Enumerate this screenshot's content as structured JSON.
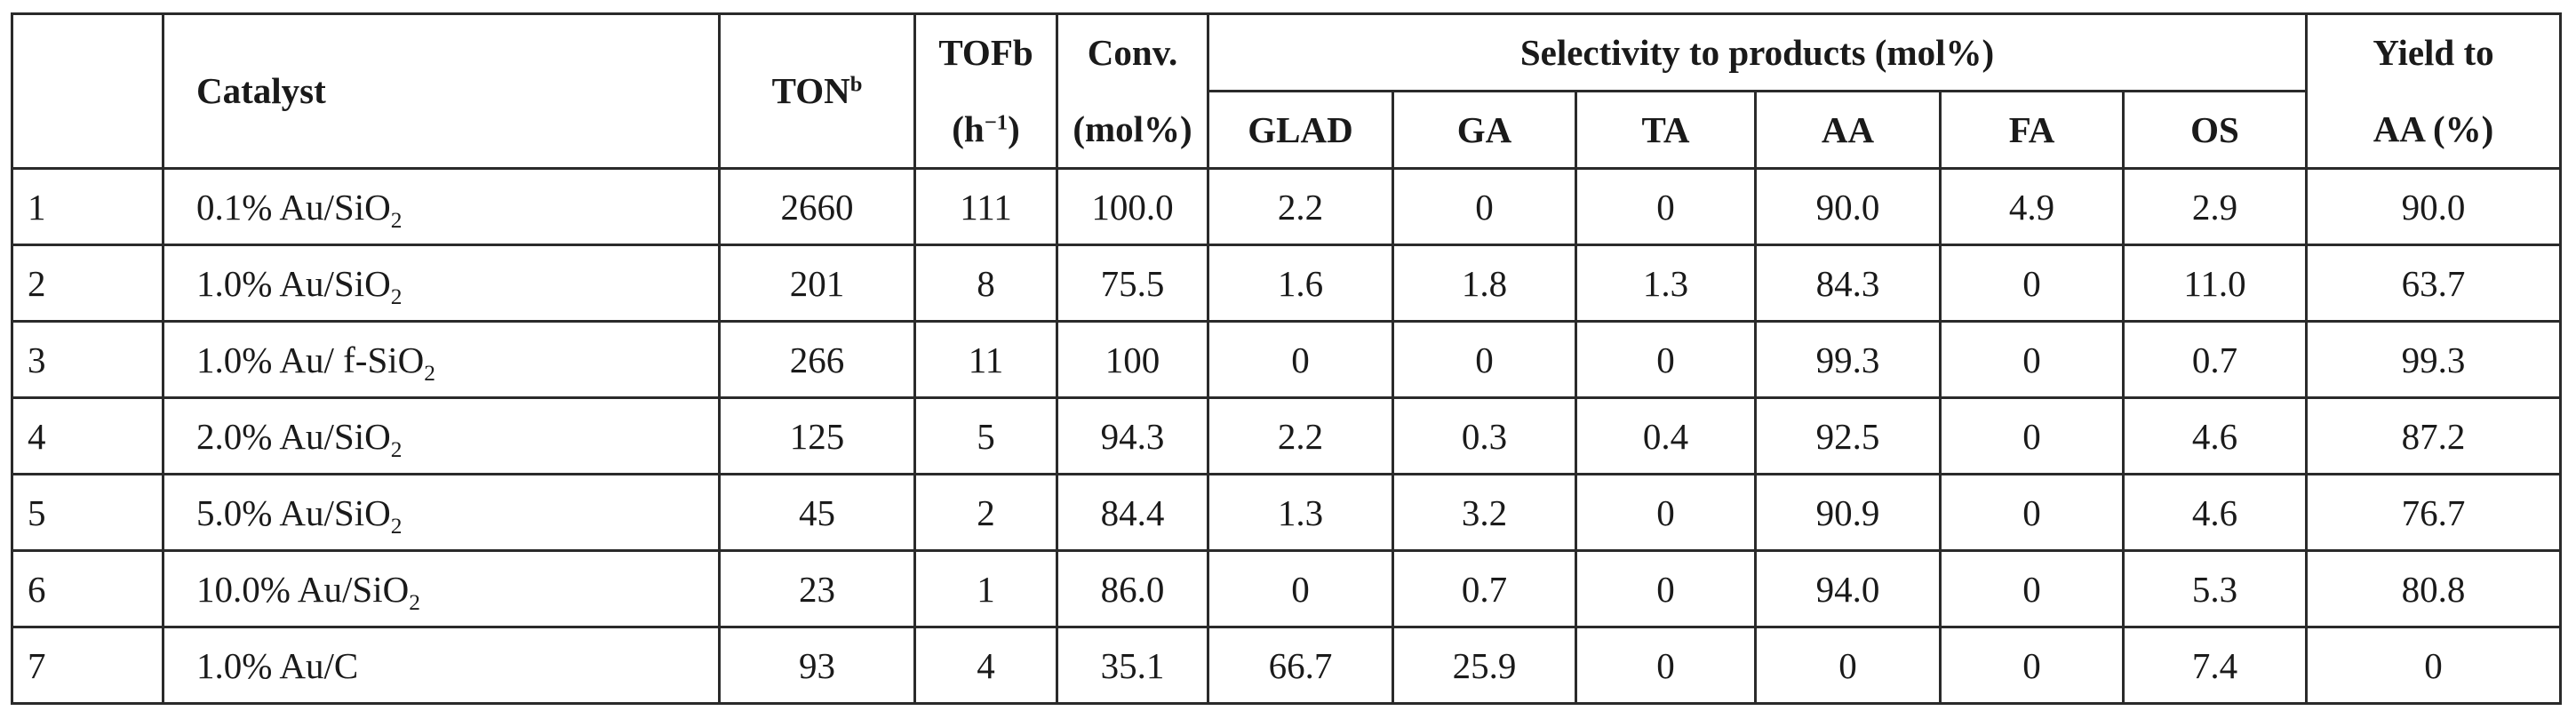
{
  "header": {
    "catalyst": "Catalyst",
    "ton": "TON",
    "ton_sup": "b",
    "tof_line1": "TOFb",
    "tof_line2_main": "(h",
    "tof_line2_sup": "−1",
    "tof_line2_end": ")",
    "conv_line1": "Conv.",
    "conv_line2": "(mol%)",
    "selectivity_group": "Selectivity to products (mol%)",
    "products": [
      "GLAD",
      "GA",
      "TA",
      "AA",
      "FA",
      "OS"
    ],
    "yield_line1": "Yield to",
    "yield_line2": "AA (%)"
  },
  "rows": [
    {
      "idx": "1",
      "cat_main": "0.1% Au/SiO",
      "cat_sub": "2",
      "ton": "2660",
      "tof": "111",
      "conv": "100.0",
      "glad": "2.2",
      "ga": "0",
      "ta": "0",
      "aa": "90.0",
      "fa": "4.9",
      "os": "2.9",
      "yield": "90.0"
    },
    {
      "idx": "2",
      "cat_main": "1.0% Au/SiO",
      "cat_sub": "2",
      "ton": "201",
      "tof": "8",
      "conv": "75.5",
      "glad": "1.6",
      "ga": "1.8",
      "ta": "1.3",
      "aa": "84.3",
      "fa": "0",
      "os": "11.0",
      "yield": "63.7"
    },
    {
      "idx": "3",
      "cat_main": "1.0% Au/ f-SiO",
      "cat_sub": "2",
      "ton": "266",
      "tof": "11",
      "conv": "100",
      "glad": "0",
      "ga": "0",
      "ta": "0",
      "aa": "99.3",
      "fa": "0",
      "os": "0.7",
      "yield": "99.3"
    },
    {
      "idx": "4",
      "cat_main": "2.0% Au/SiO",
      "cat_sub": "2",
      "ton": "125",
      "tof": "5",
      "conv": "94.3",
      "glad": "2.2",
      "ga": "0.3",
      "ta": "0.4",
      "aa": "92.5",
      "fa": "0",
      "os": "4.6",
      "yield": "87.2"
    },
    {
      "idx": "5",
      "cat_main": "5.0% Au/SiO",
      "cat_sub": "2",
      "ton": "45",
      "tof": "2",
      "conv": "84.4",
      "glad": "1.3",
      "ga": "3.2",
      "ta": "0",
      "aa": "90.9",
      "fa": "0",
      "os": "4.6",
      "yield": "76.7"
    },
    {
      "idx": "6",
      "cat_main": "10.0% Au/SiO",
      "cat_sub": "2",
      "ton": "23",
      "tof": "1",
      "conv": "86.0",
      "glad": "0",
      "ga": "0.7",
      "ta": "0",
      "aa": "94.0",
      "fa": "0",
      "os": "5.3",
      "yield": "80.8"
    },
    {
      "idx": "7",
      "cat_main": "1.0% Au/C",
      "cat_sub": "",
      "ton": "93",
      "tof": "4",
      "conv": "35.1",
      "glad": "66.7",
      "ga": "25.9",
      "ta": "0",
      "aa": "0",
      "fa": "0",
      "os": "7.4",
      "yield": "0"
    }
  ]
}
